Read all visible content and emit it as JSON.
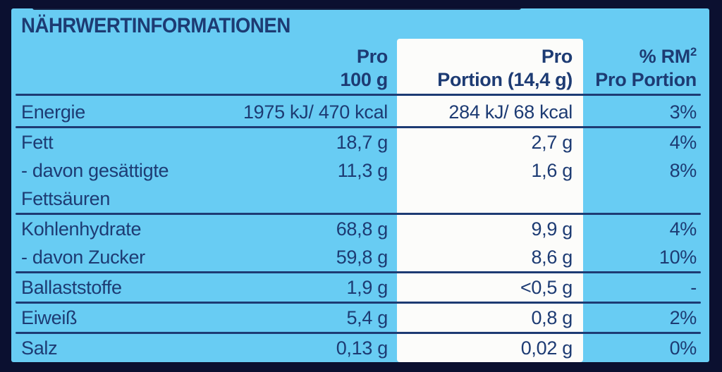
{
  "title": "NÄHRWERTINFORMATIONEN",
  "header": {
    "per100_line1": "Pro",
    "per100_line2": "100 g",
    "portion_line1": "Pro",
    "portion_line2": "Portion (14,4 g)",
    "rm_line1": "% RM",
    "rm_superscript": "2",
    "rm_line2": "Pro Portion"
  },
  "rows": [
    {
      "label": "Energie",
      "label2": "",
      "per100": "1975 kJ/ 470 kcal",
      "portion": "284 kJ/ 68 kcal",
      "rm": "3%",
      "divider": true
    },
    {
      "label": "Fett",
      "label2": "",
      "per100": "18,7 g",
      "portion": "2,7 g",
      "rm": "4%",
      "divider": false
    },
    {
      "label": "- davon gesättigte",
      "label2": "Fettsäuren",
      "per100": "11,3 g",
      "portion": "1,6 g",
      "rm": "8%",
      "divider": true
    },
    {
      "label": "Kohlenhydrate",
      "label2": "",
      "per100": "68,8 g",
      "portion": "9,9 g",
      "rm": "4%",
      "divider": false
    },
    {
      "label": "- davon Zucker",
      "label2": "",
      "per100": "59,8 g",
      "portion": "8,6 g",
      "rm": "10%",
      "divider": true
    },
    {
      "label": "Ballaststoffe",
      "label2": "",
      "per100": "1,9 g",
      "portion": "<0,5 g",
      "rm": "-",
      "divider": true
    },
    {
      "label": "Eiweiß",
      "label2": "",
      "per100": "5,4 g",
      "portion": "0,8 g",
      "rm": "2%",
      "divider": true
    },
    {
      "label": "Salz",
      "label2": "",
      "per100": "0,13 g",
      "portion": "0,02 g",
      "rm": "0%",
      "divider": false
    }
  ],
  "colors": {
    "background": "#0b1030",
    "panel": "#68ccf3",
    "text": "#1d3b73",
    "highlight_stripe": "#fcfcfa"
  }
}
